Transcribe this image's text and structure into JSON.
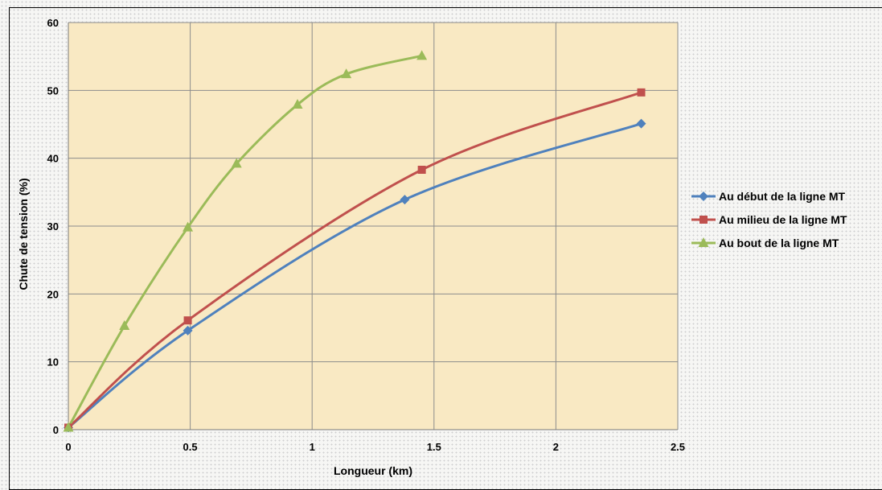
{
  "chart_data": {
    "type": "line",
    "xlabel": "Longueur (km)",
    "ylabel": "Chute de tension (%)",
    "xlim": [
      0,
      2.5
    ],
    "ylim": [
      0,
      60
    ],
    "xticks": [
      "0",
      "0.5",
      "1",
      "1.5",
      "2",
      "2.5"
    ],
    "yticks": [
      "0",
      "10",
      "20",
      "30",
      "40",
      "50",
      "60"
    ],
    "grid": true,
    "legend_position": "right",
    "plot_background": "#f9e9c3",
    "series": [
      {
        "name": "Au début de la ligne MT",
        "color": "#4f81bd",
        "marker": "diamond",
        "x": [
          0,
          0.49,
          1.38,
          2.35
        ],
        "y": [
          0.3,
          14.6,
          33.9,
          45.1
        ]
      },
      {
        "name": "Au milieu de la ligne MT",
        "color": "#c0504d",
        "marker": "square",
        "x": [
          0,
          0.49,
          1.45,
          2.35
        ],
        "y": [
          0.3,
          16.1,
          38.3,
          49.7
        ]
      },
      {
        "name": "Au bout de la ligne MT",
        "color": "#9bbb59",
        "marker": "triangle",
        "x": [
          0,
          0.23,
          0.49,
          0.69,
          0.94,
          1.14,
          1.45
        ],
        "y": [
          0.3,
          15.3,
          29.8,
          39.2,
          47.9,
          52.4,
          55.1
        ]
      }
    ]
  }
}
